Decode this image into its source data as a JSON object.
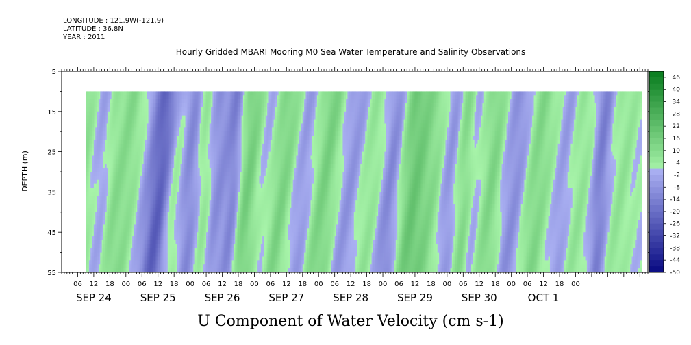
{
  "header": {
    "longitude": "LONGITUDE : 121.9W(-121.9)",
    "latitude": "LATITUDE : 36.8N",
    "year": "YEAR : 2011"
  },
  "chart_data": {
    "type": "heatmap",
    "title": "Hourly Gridded MBARI Mooring M0 Sea Water Temperature and Salinity Observations",
    "xlabel": "U Component of Water Velocity (cm s-1)",
    "ylabel": "DEPTH (m)",
    "ylim": [
      5,
      55
    ],
    "y_ticks": [
      5,
      15,
      25,
      35,
      45,
      55
    ],
    "y_reversed": true,
    "data_depth_range": [
      10,
      55
    ],
    "x_hour_ticks": [
      "06",
      "12",
      "18",
      "00",
      "06",
      "12",
      "18",
      "00",
      "06",
      "12",
      "18",
      "00",
      "06",
      "12",
      "18",
      "00",
      "06",
      "12",
      "18",
      "00",
      "06",
      "12",
      "18",
      "00",
      "06",
      "12",
      "18",
      "00",
      "06",
      "12",
      "18",
      "00"
    ],
    "x_day_labels": [
      "SEP 24",
      "SEP 25",
      "SEP 26",
      "SEP 27",
      "SEP 28",
      "SEP 29",
      "SEP 30",
      "OCT  1"
    ],
    "colorbar_levels": [
      46,
      40,
      34,
      28,
      22,
      16,
      10,
      4,
      -2,
      -8,
      -14,
      -20,
      -26,
      -32,
      -38,
      -44,
      -50
    ],
    "colorbar_labels": [
      "46",
      "40",
      "34",
      "28",
      "22",
      "16",
      "10",
      "4",
      "-2",
      "-8",
      "-14",
      "-20",
      "-26",
      "-32",
      "-38",
      "-44",
      "-50"
    ],
    "colors": {
      "strong_negative": "#0a1a8c",
      "moderate_negative": "#5a6ee0",
      "weak_negative": "#a8b0f2",
      "weak_positive": "#a6f2a8",
      "moderate_positive": "#3fe05c",
      "strong_positive": "#0a6b20"
    },
    "hovmoller_bands": [
      {
        "t_top": 3,
        "t_bot": 2,
        "value": -8,
        "w": 6
      },
      {
        "t_top": 9,
        "t_bot": 6,
        "value": 12,
        "w": 14
      },
      {
        "t_top": 16,
        "t_bot": 12,
        "value": -10,
        "w": 12
      },
      {
        "t_top": 20,
        "t_bot": 17,
        "value": 6,
        "w": 6
      },
      {
        "t_top": 28,
        "t_bot": 22,
        "value": 14,
        "w": 14
      },
      {
        "t_top": 35,
        "t_bot": 28,
        "value": -12,
        "w": 14
      },
      {
        "t_top": 40,
        "t_bot": 34,
        "value": -20,
        "w": 8
      },
      {
        "t_top": 44,
        "t_bot": 40,
        "value": 10,
        "w": 10
      },
      {
        "t_top": 49,
        "t_bot": 45,
        "value": -14,
        "w": 8
      },
      {
        "t_top": 54,
        "t_bot": 52,
        "value": 8,
        "w": 6
      },
      {
        "t_top": 60,
        "t_bot": 56,
        "value": -10,
        "w": 8
      },
      {
        "t_top": 66,
        "t_bot": 62,
        "value": -18,
        "w": 6
      },
      {
        "t_top": 72,
        "t_bot": 66,
        "value": 16,
        "w": 12
      },
      {
        "t_top": 78,
        "t_bot": 73,
        "value": -10,
        "w": 8
      },
      {
        "t_top": 86,
        "t_bot": 78,
        "value": 14,
        "w": 12
      },
      {
        "t_top": 93,
        "t_bot": 87,
        "value": -12,
        "w": 10
      },
      {
        "t_top": 102,
        "t_bot": 95,
        "value": 16,
        "w": 14
      },
      {
        "t_top": 110,
        "t_bot": 103,
        "value": -12,
        "w": 12
      },
      {
        "t_top": 118,
        "t_bot": 111,
        "value": 8,
        "w": 10
      },
      {
        "t_top": 126,
        "t_bot": 120,
        "value": -14,
        "w": 8
      },
      {
        "t_top": 133,
        "t_bot": 129,
        "value": 18,
        "w": 12
      },
      {
        "t_top": 141,
        "t_bot": 136,
        "value": 6,
        "w": 8
      },
      {
        "t_top": 147,
        "t_bot": 142,
        "value": -8,
        "w": 6
      },
      {
        "t_top": 152,
        "t_bot": 148,
        "value": 10,
        "w": 6
      },
      {
        "t_top": 156,
        "t_bot": 152,
        "value": -4,
        "w": 4
      },
      {
        "t_top": 163,
        "t_bot": 158,
        "value": 12,
        "w": 8
      },
      {
        "t_top": 172,
        "t_bot": 166,
        "value": -10,
        "w": 10
      },
      {
        "t_top": 180,
        "t_bot": 174,
        "value": 12,
        "w": 10
      },
      {
        "t_top": 190,
        "t_bot": 184,
        "value": -6,
        "w": 6
      },
      {
        "t_top": 196,
        "t_bot": 191,
        "value": 6,
        "w": 8
      },
      {
        "t_top": 203,
        "t_bot": 199,
        "value": -14,
        "w": 6
      },
      {
        "t_top": 212,
        "t_bot": 206,
        "value": 6,
        "w": 8
      }
    ],
    "time_hours_range": [
      0,
      219
    ],
    "data_start_hour": 9,
    "data_end_hour": 216
  }
}
